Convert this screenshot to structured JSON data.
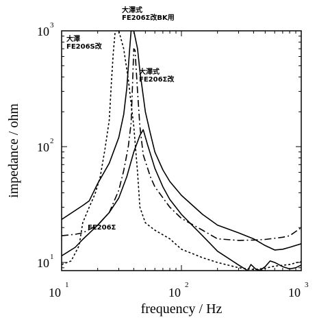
{
  "chart_data": {
    "type": "line",
    "xlabel": "frequency / Hz",
    "ylabel": "impedance / ohm",
    "xscale": "log",
    "yscale": "log",
    "xlim": [
      10,
      1000
    ],
    "ylim": [
      8.5,
      1000
    ],
    "x_ticks": [
      {
        "base": "10",
        "exp": "1"
      },
      {
        "base": "10",
        "exp": "2"
      },
      {
        "base": "10",
        "exp": "3"
      }
    ],
    "y_ticks": [
      {
        "base": "10",
        "exp": "1",
        "value": 10
      },
      {
        "base": "10",
        "exp": "2",
        "value": 100
      },
      {
        "base": "10",
        "exp": "3",
        "value": 1000
      }
    ],
    "grid": false,
    "annotations": [
      {
        "id": "ann-bk",
        "lines": [
          "大澤式",
          "FE206Σ改BK用"
        ]
      },
      {
        "id": "ann-s",
        "lines": [
          "大澤",
          "FE206S改"
        ]
      },
      {
        "id": "ann-sigma-kai",
        "lines": [
          "大澤式",
          "FE206Σ改"
        ]
      },
      {
        "id": "ann-sigma",
        "lines": [
          "FE206Σ"
        ]
      }
    ],
    "series": [
      {
        "id": "fe206s-kai",
        "dash": "3,3",
        "points": [
          [
            10,
            9.6
          ],
          [
            12,
            10.3
          ],
          [
            14,
            14
          ],
          [
            15,
            22
          ],
          [
            17,
            30
          ],
          [
            19,
            39
          ],
          [
            21,
            55
          ],
          [
            23,
            95
          ],
          [
            25,
            170
          ],
          [
            26,
            350
          ],
          [
            27,
            650
          ],
          [
            28,
            1000
          ],
          [
            30,
            1000
          ],
          [
            33,
            700
          ],
          [
            36,
            380
          ],
          [
            40,
            150
          ],
          [
            43,
            60
          ],
          [
            45,
            30
          ],
          [
            50,
            22
          ],
          [
            60,
            19
          ],
          [
            80,
            16
          ],
          [
            100,
            13
          ],
          [
            150,
            11
          ],
          [
            200,
            10
          ],
          [
            300,
            9
          ],
          [
            400,
            8.7
          ],
          [
            500,
            8.9
          ],
          [
            600,
            9.3
          ],
          [
            800,
            9.6
          ],
          [
            1000,
            10.2
          ]
        ]
      },
      {
        "id": "fe206-sigma-kai-bk",
        "dash": "",
        "points": [
          [
            10,
            23.5
          ],
          [
            15,
            31
          ],
          [
            17,
            34
          ],
          [
            20,
            48
          ],
          [
            25,
            72
          ],
          [
            30,
            120
          ],
          [
            33,
            190
          ],
          [
            35,
            320
          ],
          [
            37,
            700
          ],
          [
            38,
            1000
          ],
          [
            40,
            1000
          ],
          [
            43,
            700
          ],
          [
            45,
            450
          ],
          [
            50,
            200
          ],
          [
            55,
            130
          ],
          [
            60,
            90
          ],
          [
            70,
            63
          ],
          [
            80,
            50
          ],
          [
            100,
            38
          ],
          [
            150,
            26
          ],
          [
            200,
            21
          ],
          [
            300,
            18
          ],
          [
            400,
            16
          ],
          [
            500,
            14
          ],
          [
            600,
            12.8
          ],
          [
            700,
            13
          ],
          [
            800,
            13.5
          ],
          [
            1000,
            14.5
          ]
        ]
      },
      {
        "id": "fe206-sigma-kai",
        "dash": "10,4,2,4",
        "points": [
          [
            10,
            17
          ],
          [
            13,
            17.5
          ],
          [
            15,
            18
          ],
          [
            20,
            21
          ],
          [
            25,
            27
          ],
          [
            30,
            42
          ],
          [
            33,
            62
          ],
          [
            36,
            100
          ],
          [
            38,
            160
          ],
          [
            39,
            320
          ],
          [
            40,
            700
          ],
          [
            41,
            680
          ],
          [
            43,
            300
          ],
          [
            45,
            150
          ],
          [
            48,
            85
          ],
          [
            55,
            55
          ],
          [
            60,
            45
          ],
          [
            80,
            30
          ],
          [
            100,
            24
          ],
          [
            150,
            19
          ],
          [
            200,
            16
          ],
          [
            300,
            15.5
          ],
          [
            400,
            15.6
          ],
          [
            500,
            15.8
          ],
          [
            700,
            16.5
          ],
          [
            800,
            17
          ],
          [
            900,
            18.5
          ],
          [
            1000,
            20
          ]
        ]
      },
      {
        "id": "fe206-sigma",
        "dash": "",
        "points": [
          [
            10,
            11.4
          ],
          [
            13,
            13.5
          ],
          [
            15,
            15.8
          ],
          [
            20,
            21
          ],
          [
            25,
            27
          ],
          [
            30,
            36
          ],
          [
            35,
            55
          ],
          [
            40,
            90
          ],
          [
            45,
            125
          ],
          [
            48,
            140
          ],
          [
            52,
            105
          ],
          [
            60,
            65
          ],
          [
            70,
            45
          ],
          [
            80,
            35
          ],
          [
            100,
            26
          ],
          [
            150,
            17
          ],
          [
            200,
            12.5
          ],
          [
            300,
            9.5
          ],
          [
            350,
            8.6
          ],
          [
            400,
            8.2
          ],
          [
            450,
            8.5
          ],
          [
            500,
            9.2
          ],
          [
            550,
            10.3
          ],
          [
            600,
            10
          ],
          [
            700,
            9.2
          ],
          [
            800,
            8.8
          ],
          [
            900,
            9
          ],
          [
            1000,
            9.5
          ]
        ]
      },
      {
        "id": "fe206-sigma-tail",
        "dash": "",
        "points": [
          [
            250,
            8.4
          ],
          [
            300,
            8.1
          ],
          [
            350,
            8.2
          ],
          [
            380,
            9.6
          ],
          [
            420,
            8.7
          ],
          [
            480,
            8.5
          ],
          [
            550,
            8.4
          ],
          [
            650,
            8.2
          ],
          [
            700,
            8
          ],
          [
            800,
            8.3
          ],
          [
            900,
            8.1
          ],
          [
            1000,
            8
          ]
        ]
      }
    ]
  }
}
